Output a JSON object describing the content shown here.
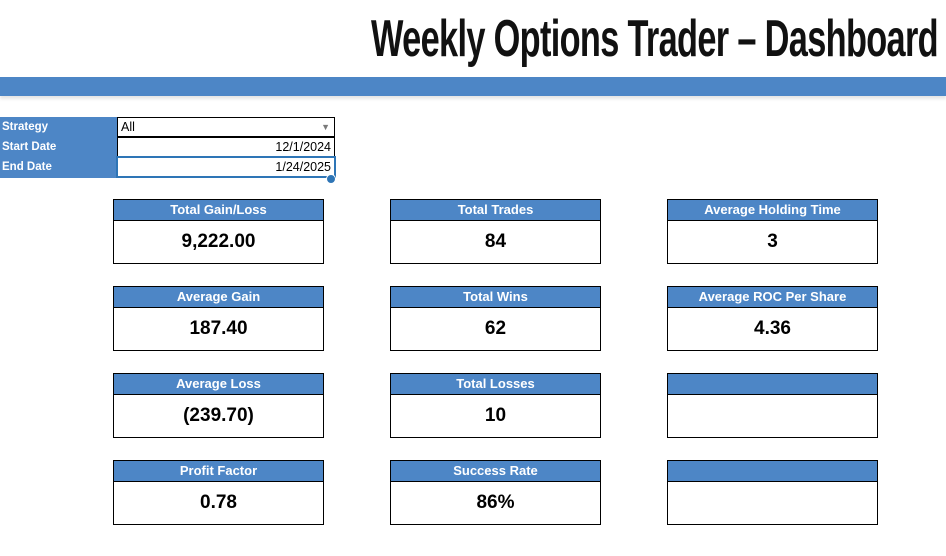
{
  "title": "Weekly Options Trader – Dashboard",
  "colors": {
    "accent_blue": "#4d86c6",
    "active_cell_border": "#2e75b6"
  },
  "filters": {
    "strategy": {
      "label": "Strategy",
      "value": "All",
      "dropdown_icon": "chevron-down"
    },
    "start_date": {
      "label": "Start Date",
      "value": "12/1/2024"
    },
    "end_date": {
      "label": "End Date",
      "value": "1/24/2025"
    }
  },
  "dropdown_arrow_glyph": "▼",
  "cards": [
    {
      "label": "Total Gain/Loss",
      "value": "9,222.00"
    },
    {
      "label": "Total Trades",
      "value": "84"
    },
    {
      "label": "Average Holding Time",
      "value": "3"
    },
    {
      "label": "Average Gain",
      "value": "187.40"
    },
    {
      "label": "Total Wins",
      "value": "62"
    },
    {
      "label": "Average ROC Per Share",
      "value": "4.36"
    },
    {
      "label": "Average Loss",
      "value": "(239.70)"
    },
    {
      "label": "Total Losses",
      "value": "10"
    },
    {
      "label": "",
      "value": ""
    },
    {
      "label": "Profit Factor",
      "value": "0.78"
    },
    {
      "label": "Success Rate",
      "value": "86%"
    },
    {
      "label": "",
      "value": ""
    }
  ]
}
